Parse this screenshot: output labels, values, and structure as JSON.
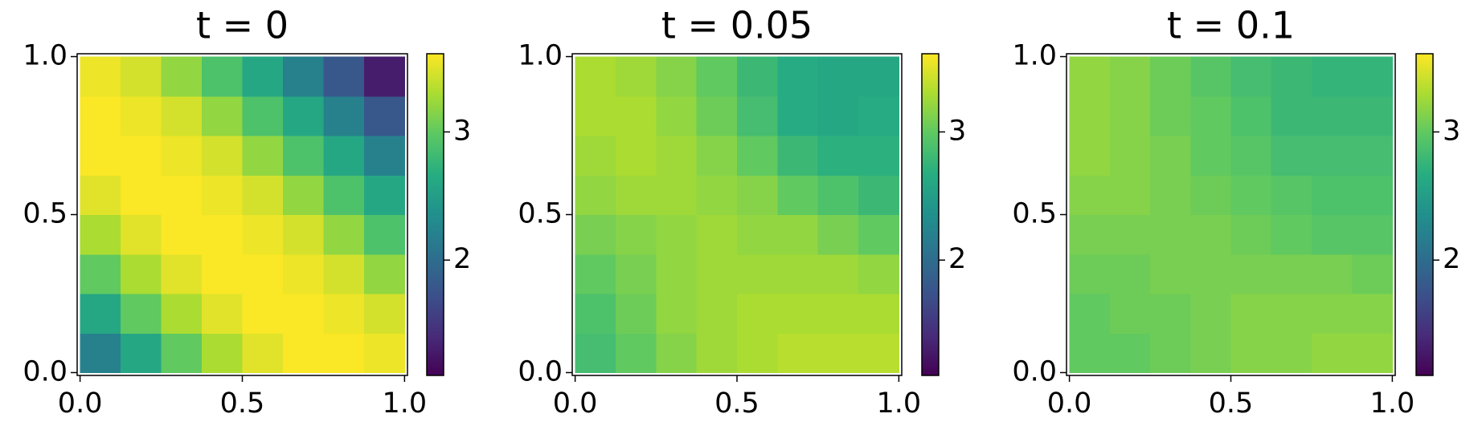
{
  "chart_data": [
    {
      "type": "heatmap",
      "title": "t = 0",
      "colormap": "viridis",
      "z": [
        [
          2.2,
          2.6,
          3.0,
          3.3,
          3.5,
          3.6,
          3.6,
          3.55
        ],
        [
          2.6,
          3.0,
          3.3,
          3.5,
          3.6,
          3.6,
          3.55,
          3.45
        ],
        [
          3.0,
          3.3,
          3.5,
          3.6,
          3.6,
          3.55,
          3.45,
          3.2
        ],
        [
          3.3,
          3.5,
          3.6,
          3.6,
          3.55,
          3.45,
          3.2,
          2.9
        ],
        [
          3.5,
          3.6,
          3.6,
          3.55,
          3.45,
          3.2,
          2.9,
          2.6
        ],
        [
          3.6,
          3.6,
          3.55,
          3.45,
          3.2,
          2.9,
          2.6,
          2.2
        ],
        [
          3.6,
          3.55,
          3.45,
          3.2,
          2.9,
          2.6,
          2.2,
          1.8
        ],
        [
          3.55,
          3.45,
          3.2,
          2.9,
          2.6,
          2.2,
          1.8,
          1.3
        ]
      ],
      "xlim": [
        -0.009,
        1.009
      ],
      "ylim": [
        -0.009,
        1.009
      ],
      "xticks": [
        {
          "value": 0,
          "label": "0.0"
        },
        {
          "value": 0.5,
          "label": "0.5"
        },
        {
          "value": 1,
          "label": "1.0"
        }
      ],
      "yticks": [
        {
          "value": 0,
          "label": "0.0"
        },
        {
          "value": 0.5,
          "label": "0.5"
        },
        {
          "value": 1,
          "label": "1.0"
        }
      ],
      "zlim": [
        1.1,
        3.61
      ],
      "zticks": [
        2,
        3
      ]
    },
    {
      "type": "heatmap",
      "title": "t = 0.05",
      "colormap": "viridis",
      "z": [
        [
          2.85,
          3.0,
          3.15,
          3.25,
          3.3,
          3.35,
          3.35,
          3.35
        ],
        [
          2.9,
          3.05,
          3.2,
          3.25,
          3.3,
          3.3,
          3.3,
          3.3
        ],
        [
          3.0,
          3.1,
          3.2,
          3.25,
          3.25,
          3.25,
          3.25,
          3.2
        ],
        [
          3.1,
          3.15,
          3.2,
          3.25,
          3.2,
          3.2,
          3.1,
          3.0
        ],
        [
          3.2,
          3.25,
          3.25,
          3.2,
          3.15,
          3.0,
          2.9,
          2.8
        ],
        [
          3.25,
          3.3,
          3.25,
          3.15,
          3.0,
          2.8,
          2.7,
          2.7
        ],
        [
          3.3,
          3.3,
          3.2,
          3.05,
          2.85,
          2.65,
          2.6,
          2.65
        ],
        [
          3.3,
          3.25,
          3.15,
          3.0,
          2.8,
          2.65,
          2.6,
          2.6
        ]
      ],
      "xlim": [
        -0.009,
        1.009
      ],
      "ylim": [
        -0.009,
        1.009
      ],
      "xticks": [
        {
          "value": 0,
          "label": "0.0"
        },
        {
          "value": 0.5,
          "label": "0.5"
        },
        {
          "value": 1,
          "label": "1.0"
        }
      ],
      "yticks": [
        {
          "value": 0,
          "label": "0.0"
        },
        {
          "value": 0.5,
          "label": "0.5"
        },
        {
          "value": 1,
          "label": "1.0"
        }
      ],
      "zlim": [
        1.1,
        3.61
      ],
      "zticks": [
        2,
        3
      ]
    },
    {
      "type": "heatmap",
      "title": "t = 0.1",
      "colormap": "viridis",
      "z": [
        [
          3.0,
          3.0,
          3.05,
          3.1,
          3.15,
          3.15,
          3.2,
          3.2
        ],
        [
          3.0,
          3.05,
          3.05,
          3.1,
          3.15,
          3.15,
          3.15,
          3.15
        ],
        [
          3.05,
          3.05,
          3.1,
          3.1,
          3.1,
          3.1,
          3.1,
          3.05
        ],
        [
          3.1,
          3.1,
          3.1,
          3.1,
          3.05,
          3.0,
          2.95,
          2.95
        ],
        [
          3.15,
          3.15,
          3.1,
          3.05,
          3.0,
          2.95,
          2.9,
          2.9
        ],
        [
          3.2,
          3.15,
          3.1,
          3.0,
          2.95,
          2.85,
          2.85,
          2.85
        ],
        [
          3.2,
          3.15,
          3.05,
          3.0,
          2.9,
          2.8,
          2.8,
          2.8
        ],
        [
          3.2,
          3.15,
          3.05,
          2.95,
          2.85,
          2.8,
          2.75,
          2.75
        ]
      ],
      "xlim": [
        -0.009,
        1.009
      ],
      "ylim": [
        -0.009,
        1.009
      ],
      "xticks": [
        {
          "value": 0,
          "label": "0.0"
        },
        {
          "value": 0.5,
          "label": "0.5"
        },
        {
          "value": 1,
          "label": "1.0"
        }
      ],
      "yticks": [
        {
          "value": 0,
          "label": "0.0"
        },
        {
          "value": 0.5,
          "label": "0.5"
        },
        {
          "value": 1,
          "label": "1.0"
        }
      ],
      "zlim": [
        1.1,
        3.61
      ],
      "zticks": [
        2,
        3
      ]
    }
  ]
}
